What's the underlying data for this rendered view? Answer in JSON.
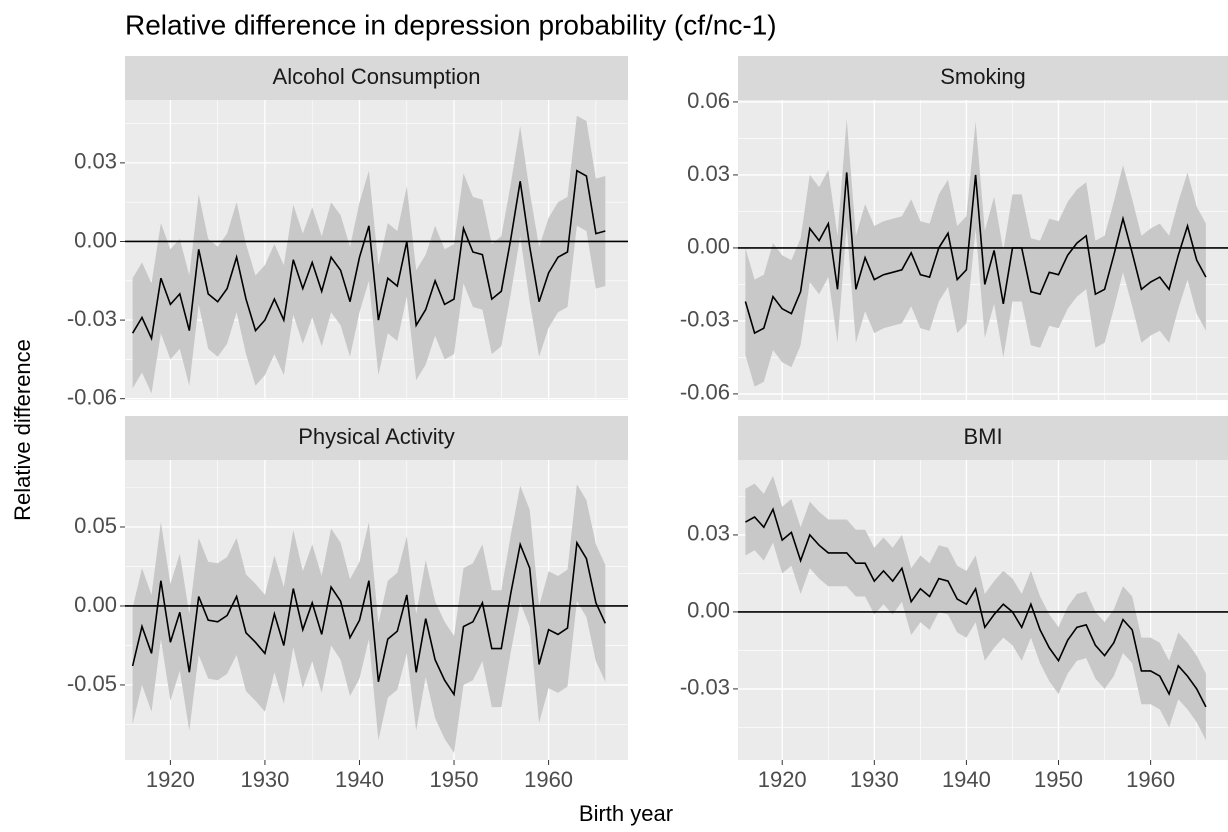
{
  "chart_data": {
    "type": "line",
    "title": "Relative difference in depression probability (cf/nc-1)",
    "x_label": "Birth year",
    "y_label": "Relative difference",
    "x": [
      1916,
      1917,
      1918,
      1919,
      1920,
      1921,
      1922,
      1923,
      1924,
      1925,
      1926,
      1927,
      1928,
      1929,
      1930,
      1931,
      1932,
      1933,
      1934,
      1935,
      1936,
      1937,
      1938,
      1939,
      1940,
      1941,
      1942,
      1943,
      1944,
      1945,
      1946,
      1947,
      1948,
      1949,
      1950,
      1951,
      1952,
      1953,
      1954,
      1955,
      1956,
      1957,
      1958,
      1959,
      1960,
      1961,
      1962,
      1963,
      1964,
      1965,
      1966
    ],
    "xlim": [
      1915.2,
      1968.4
    ],
    "xticks": [
      1920,
      1930,
      1940,
      1950,
      1960
    ],
    "grid": true,
    "line_color": "#000000",
    "band_color": "#c8c8c8",
    "reference_line": 0,
    "facets": [
      {
        "title": "Alcohol Consumption",
        "ylim": [
          -0.0605,
          0.054
        ],
        "yticks": [
          -0.06,
          -0.03,
          {
            "value": 0,
            "label": "0.00"
          },
          0.03
        ],
        "values": [
          -0.035,
          -0.029,
          -0.037,
          -0.014,
          -0.024,
          -0.02,
          -0.034,
          -0.003,
          -0.02,
          -0.023,
          -0.018,
          -0.006,
          -0.022,
          -0.034,
          -0.03,
          -0.022,
          -0.03,
          -0.007,
          -0.018,
          -0.008,
          -0.019,
          -0.006,
          -0.011,
          -0.023,
          -0.006,
          0.006,
          -0.03,
          -0.014,
          -0.017,
          0.0,
          -0.032,
          -0.026,
          -0.015,
          -0.024,
          -0.022,
          0.005,
          -0.004,
          -0.005,
          -0.022,
          -0.019,
          0.001,
          0.023,
          -0.002,
          -0.023,
          -0.012,
          -0.006,
          -0.004,
          0.027,
          0.025,
          0.003,
          0.004
        ],
        "lower": [
          -0.056,
          -0.05,
          -0.058,
          -0.035,
          -0.045,
          -0.041,
          -0.055,
          -0.024,
          -0.041,
          -0.044,
          -0.039,
          -0.027,
          -0.043,
          -0.055,
          -0.051,
          -0.043,
          -0.051,
          -0.028,
          -0.039,
          -0.029,
          -0.04,
          -0.027,
          -0.032,
          -0.044,
          -0.027,
          -0.015,
          -0.051,
          -0.035,
          -0.038,
          -0.021,
          -0.053,
          -0.047,
          -0.036,
          -0.045,
          -0.043,
          -0.016,
          -0.025,
          -0.026,
          -0.043,
          -0.04,
          -0.02,
          0.002,
          -0.023,
          -0.044,
          -0.033,
          -0.027,
          -0.025,
          0.006,
          0.004,
          -0.018,
          -0.017
        ],
        "upper": [
          -0.014,
          -0.008,
          -0.016,
          0.007,
          -0.003,
          0.001,
          -0.013,
          0.018,
          0.001,
          -0.002,
          0.003,
          0.015,
          -0.001,
          -0.013,
          -0.009,
          -0.001,
          -0.009,
          0.014,
          0.003,
          0.013,
          0.002,
          0.015,
          0.01,
          -0.002,
          0.015,
          0.027,
          -0.009,
          0.007,
          0.004,
          0.021,
          -0.011,
          -0.005,
          0.006,
          -0.003,
          -0.001,
          0.026,
          0.017,
          0.016,
          -0.001,
          0.002,
          0.022,
          0.044,
          0.019,
          -0.002,
          0.009,
          0.015,
          0.017,
          0.048,
          0.046,
          0.024,
          0.025
        ]
      },
      {
        "title": "Smoking",
        "ylim": [
          -0.0625,
          0.0608
        ],
        "yticks": [
          -0.06,
          -0.03,
          {
            "value": 0,
            "label": "0.00"
          },
          0.03,
          0.06
        ],
        "values": [
          -0.022,
          -0.035,
          -0.033,
          -0.02,
          -0.025,
          -0.027,
          -0.018,
          0.008,
          0.003,
          0.01,
          -0.017,
          0.031,
          -0.017,
          -0.004,
          -0.013,
          -0.011,
          -0.01,
          -0.009,
          -0.002,
          -0.011,
          -0.012,
          0.0,
          0.006,
          -0.013,
          -0.009,
          0.03,
          -0.015,
          -0.001,
          -0.023,
          0.0,
          0.0,
          -0.018,
          -0.019,
          -0.01,
          -0.011,
          -0.003,
          0.002,
          0.005,
          -0.019,
          -0.017,
          -0.003,
          0.012,
          -0.002,
          -0.017,
          -0.014,
          -0.012,
          -0.017,
          -0.003,
          0.009,
          -0.005,
          -0.012
        ],
        "lower": [
          -0.044,
          -0.057,
          -0.055,
          -0.042,
          -0.047,
          -0.049,
          -0.04,
          -0.014,
          -0.019,
          -0.012,
          -0.039,
          0.009,
          -0.039,
          -0.026,
          -0.035,
          -0.033,
          -0.032,
          -0.031,
          -0.024,
          -0.033,
          -0.034,
          -0.022,
          -0.016,
          -0.035,
          -0.031,
          0.008,
          -0.037,
          -0.023,
          -0.045,
          -0.022,
          -0.022,
          -0.04,
          -0.041,
          -0.032,
          -0.033,
          -0.025,
          -0.02,
          -0.017,
          -0.041,
          -0.039,
          -0.025,
          -0.01,
          -0.024,
          -0.039,
          -0.036,
          -0.034,
          -0.039,
          -0.025,
          -0.013,
          -0.027,
          -0.034
        ],
        "upper": [
          0.0,
          -0.013,
          -0.011,
          0.002,
          -0.003,
          -0.005,
          0.004,
          0.03,
          0.025,
          0.032,
          0.005,
          0.053,
          0.005,
          0.018,
          0.009,
          0.011,
          0.012,
          0.013,
          0.02,
          0.011,
          0.01,
          0.022,
          0.028,
          0.009,
          0.013,
          0.052,
          0.007,
          0.021,
          -0.001,
          0.022,
          0.022,
          0.004,
          0.003,
          0.012,
          0.011,
          0.019,
          0.024,
          0.027,
          0.003,
          0.005,
          0.019,
          0.034,
          0.02,
          0.005,
          0.008,
          0.01,
          0.005,
          0.019,
          0.031,
          0.017,
          0.01
        ]
      },
      {
        "title": "Physical Activity",
        "ylim": [
          -0.0975,
          0.0924
        ],
        "yticks": [
          -0.05,
          {
            "value": 0,
            "label": "0.00"
          },
          0.05
        ],
        "values": [
          -0.038,
          -0.013,
          -0.03,
          0.016,
          -0.023,
          -0.004,
          -0.042,
          0.006,
          -0.009,
          -0.01,
          -0.006,
          0.006,
          -0.017,
          -0.023,
          -0.03,
          -0.005,
          -0.025,
          0.011,
          -0.015,
          0.002,
          -0.018,
          0.012,
          0.003,
          -0.02,
          -0.009,
          0.016,
          -0.048,
          -0.021,
          -0.016,
          0.007,
          -0.042,
          -0.008,
          -0.034,
          -0.047,
          -0.056,
          -0.013,
          -0.01,
          0.002,
          -0.027,
          -0.027,
          0.008,
          0.039,
          0.024,
          -0.037,
          -0.015,
          -0.018,
          -0.014,
          0.04,
          0.03,
          0.002,
          -0.011
        ],
        "lower": [
          -0.075,
          -0.05,
          -0.067,
          -0.021,
          -0.06,
          -0.041,
          -0.079,
          -0.031,
          -0.046,
          -0.047,
          -0.043,
          -0.031,
          -0.054,
          -0.06,
          -0.067,
          -0.042,
          -0.062,
          -0.026,
          -0.052,
          -0.035,
          -0.055,
          -0.025,
          -0.034,
          -0.057,
          -0.046,
          -0.021,
          -0.085,
          -0.058,
          -0.053,
          -0.03,
          -0.079,
          -0.045,
          -0.071,
          -0.084,
          -0.093,
          -0.05,
          -0.047,
          -0.035,
          -0.064,
          -0.064,
          -0.029,
          0.002,
          -0.013,
          -0.074,
          -0.052,
          -0.055,
          -0.051,
          0.003,
          -0.007,
          -0.035,
          -0.048
        ],
        "upper": [
          -0.001,
          0.024,
          0.007,
          0.053,
          0.014,
          0.033,
          -0.005,
          0.043,
          0.028,
          0.027,
          0.031,
          0.043,
          0.02,
          0.014,
          0.007,
          0.032,
          0.012,
          0.048,
          0.022,
          0.039,
          0.019,
          0.049,
          0.04,
          0.017,
          0.028,
          0.053,
          -0.011,
          0.016,
          0.021,
          0.044,
          -0.005,
          0.029,
          0.003,
          -0.01,
          -0.019,
          0.024,
          0.027,
          0.039,
          0.01,
          0.01,
          0.045,
          0.076,
          0.061,
          0.0,
          0.022,
          0.019,
          0.023,
          0.077,
          0.067,
          0.039,
          0.026
        ]
      },
      {
        "title": "BMI",
        "ylim": [
          -0.0577,
          0.0592
        ],
        "yticks": [
          -0.03,
          {
            "value": 0,
            "label": "0.00"
          },
          0.03
        ],
        "values": [
          0.035,
          0.037,
          0.033,
          0.04,
          0.028,
          0.031,
          0.02,
          0.03,
          0.026,
          0.023,
          0.023,
          0.023,
          0.019,
          0.019,
          0.012,
          0.016,
          0.012,
          0.017,
          0.004,
          0.009,
          0.006,
          0.013,
          0.012,
          0.005,
          0.003,
          0.009,
          -0.006,
          -0.001,
          0.003,
          0.0,
          -0.006,
          0.003,
          -0.007,
          -0.014,
          -0.019,
          -0.011,
          -0.006,
          -0.005,
          -0.013,
          -0.017,
          -0.012,
          -0.003,
          -0.007,
          -0.023,
          -0.023,
          -0.025,
          -0.032,
          -0.021,
          -0.025,
          -0.03,
          -0.037
        ],
        "lower": [
          0.022,
          0.024,
          0.02,
          0.027,
          0.015,
          0.018,
          0.007,
          0.017,
          0.013,
          0.01,
          0.01,
          0.01,
          0.006,
          0.006,
          -0.001,
          0.003,
          -0.001,
          0.004,
          -0.009,
          -0.004,
          -0.007,
          0.0,
          -0.001,
          -0.008,
          -0.01,
          -0.004,
          -0.019,
          -0.014,
          -0.01,
          -0.013,
          -0.019,
          -0.01,
          -0.02,
          -0.027,
          -0.032,
          -0.024,
          -0.019,
          -0.018,
          -0.026,
          -0.03,
          -0.025,
          -0.016,
          -0.02,
          -0.036,
          -0.036,
          -0.038,
          -0.045,
          -0.034,
          -0.038,
          -0.043,
          -0.05
        ],
        "upper": [
          0.048,
          0.05,
          0.046,
          0.053,
          0.041,
          0.044,
          0.033,
          0.043,
          0.039,
          0.036,
          0.036,
          0.036,
          0.032,
          0.032,
          0.025,
          0.029,
          0.025,
          0.03,
          0.017,
          0.022,
          0.019,
          0.026,
          0.025,
          0.018,
          0.016,
          0.022,
          0.007,
          0.012,
          0.016,
          0.013,
          0.007,
          0.016,
          0.006,
          -0.001,
          -0.006,
          0.002,
          0.007,
          0.008,
          0.0,
          -0.004,
          0.001,
          0.01,
          0.006,
          -0.01,
          -0.01,
          -0.012,
          -0.019,
          -0.008,
          -0.012,
          -0.017,
          -0.024
        ]
      }
    ]
  }
}
